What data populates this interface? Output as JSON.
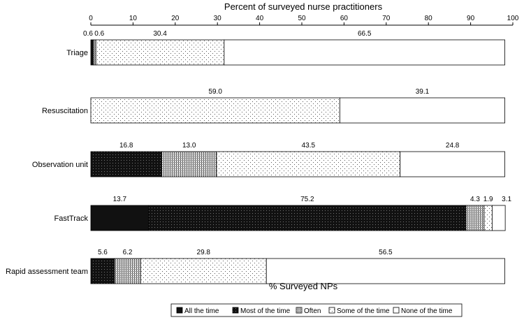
{
  "chart_data": {
    "type": "bar",
    "orientation": "horizontal",
    "stacked": true,
    "title": "Percent of surveyed nurse practitioners",
    "xlabel": "% Surveyed NPs",
    "xlim": [
      0,
      100
    ],
    "xticks": [
      "0",
      "10",
      "20",
      "30",
      "40",
      "50",
      "60",
      "70",
      "80",
      "90",
      "100"
    ],
    "categories": [
      "Triage",
      "Resuscitation",
      "Observation unit",
      "FastTrack",
      "Rapid assessment team"
    ],
    "series": [
      {
        "name": "All the time",
        "values": [
          0,
          0,
          0,
          13.7,
          0
        ]
      },
      {
        "name": "Most of the time",
        "values": [
          0.6,
          0,
          16.8,
          75.2,
          5.6
        ]
      },
      {
        "name": "Often",
        "values": [
          0.6,
          0,
          13.0,
          4.3,
          6.2
        ]
      },
      {
        "name": "Some of the time",
        "values": [
          30.4,
          59.0,
          43.5,
          1.9,
          29.8
        ]
      },
      {
        "name": "None of the time",
        "values": [
          66.5,
          39.1,
          24.8,
          3.1,
          56.5
        ]
      }
    ],
    "data_labels": [
      [
        "",
        "0.6",
        "0.6",
        "30.4",
        "66.5"
      ],
      [
        "",
        "",
        "",
        "59.0",
        "39.1"
      ],
      [
        "",
        "16.8",
        "13.0",
        "43.5",
        "24.8"
      ],
      [
        "13.7",
        "75.2",
        "4.3",
        "1.9",
        "3.1"
      ],
      [
        "",
        "5.6",
        "6.2",
        "29.8",
        "56.5"
      ]
    ],
    "legend_position": "bottom",
    "grid": false
  }
}
